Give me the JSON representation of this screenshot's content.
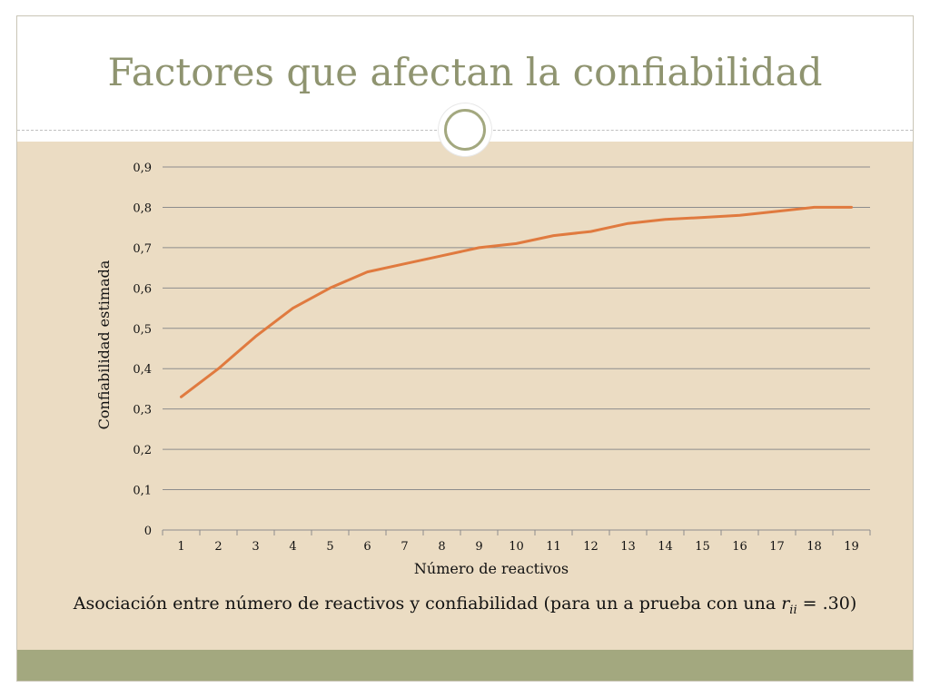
{
  "slide": {
    "title": "Factores que afectan la confiabilidad",
    "caption_prefix": "Asociación entre número de reactivos y confiabilidad (para un a prueba con una ",
    "caption_r": "r",
    "caption_sub": "ii",
    "caption_suffix": " = .30)"
  },
  "colors": {
    "title": "#8f9470",
    "content_bg": "#ebdcc3",
    "band": "#a3a87f",
    "series_line": "#e07a3f",
    "gridline": "#8c8c8c"
  },
  "chart_data": {
    "type": "line",
    "title": "",
    "xlabel": "Número de reactivos",
    "ylabel": "Confiabilidad estimada",
    "categories": [
      "1",
      "2",
      "3",
      "4",
      "5",
      "6",
      "7",
      "8",
      "9",
      "10",
      "11",
      "12",
      "13",
      "14",
      "15",
      "16",
      "17",
      "18",
      "19"
    ],
    "y_ticks": [
      "0",
      "0,1",
      "0,2",
      "0,3",
      "0,4",
      "0,5",
      "0,6",
      "0,7",
      "0,8",
      "0,9"
    ],
    "ylim": [
      0,
      0.9
    ],
    "grid": true,
    "legend": "none",
    "series": [
      {
        "values": [
          0.33,
          0.4,
          0.48,
          0.55,
          0.6,
          0.64,
          0.66,
          0.68,
          0.7,
          0.71,
          0.73,
          0.74,
          0.76,
          0.77,
          0.775,
          0.78,
          0.79,
          0.8,
          0.8
        ]
      }
    ]
  }
}
